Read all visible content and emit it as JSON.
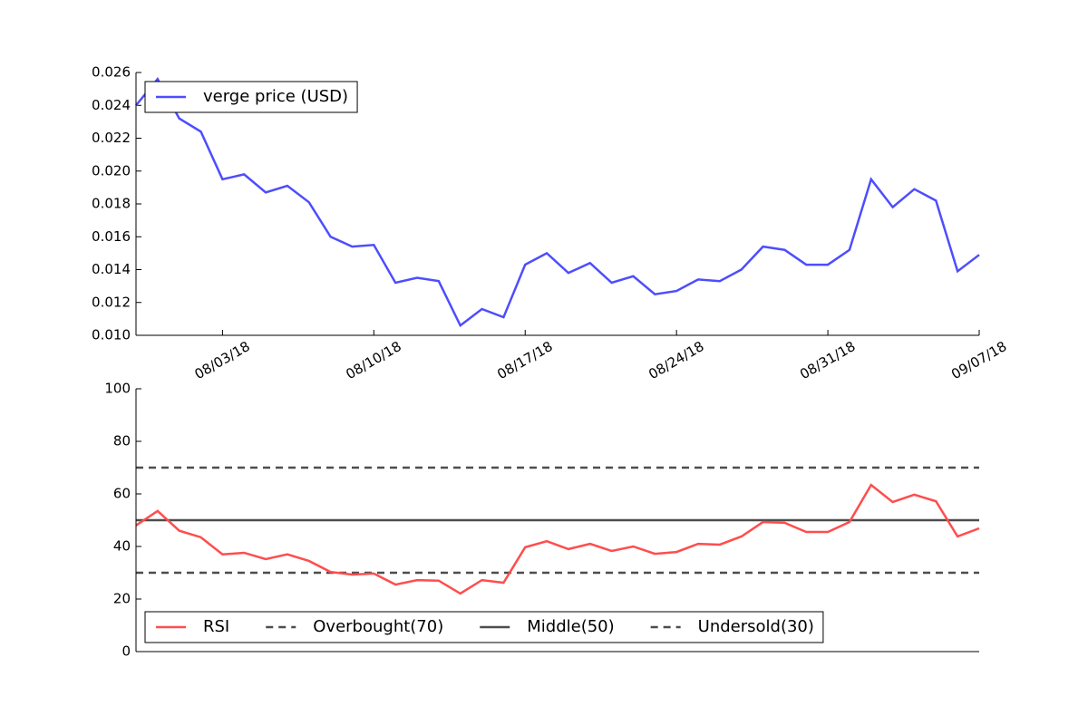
{
  "chart_data": [
    {
      "type": "line",
      "x": [
        "2018-07-30",
        "2018-07-31",
        "2018-08-01",
        "2018-08-02",
        "2018-08-03",
        "2018-08-04",
        "2018-08-05",
        "2018-08-06",
        "2018-08-07",
        "2018-08-08",
        "2018-08-09",
        "2018-08-10",
        "2018-08-11",
        "2018-08-12",
        "2018-08-13",
        "2018-08-14",
        "2018-08-15",
        "2018-08-16",
        "2018-08-17",
        "2018-08-18",
        "2018-08-19",
        "2018-08-20",
        "2018-08-21",
        "2018-08-22",
        "2018-08-23",
        "2018-08-24",
        "2018-08-25",
        "2018-08-26",
        "2018-08-27",
        "2018-08-28",
        "2018-08-29",
        "2018-08-30",
        "2018-08-31",
        "2018-09-01",
        "2018-09-02",
        "2018-09-03",
        "2018-09-04",
        "2018-09-05",
        "2018-09-06",
        "2018-09-07"
      ],
      "series": [
        {
          "name": "verge price (USD)",
          "color": "#4d4dff",
          "values": [
            0.024,
            0.0256,
            0.0232,
            0.0224,
            0.0195,
            0.0198,
            0.0187,
            0.0191,
            0.0181,
            0.016,
            0.0154,
            0.0155,
            0.0132,
            0.0135,
            0.0133,
            0.0106,
            0.0116,
            0.0111,
            0.0143,
            0.015,
            0.0138,
            0.0144,
            0.0132,
            0.0136,
            0.0125,
            0.0127,
            0.0134,
            0.0133,
            0.014,
            0.0154,
            0.0152,
            0.0143,
            0.0143,
            0.0152,
            0.0195,
            0.0178,
            0.0189,
            0.0182,
            0.0139,
            0.0149
          ]
        }
      ],
      "xlim": [
        "2018-07-30",
        "2018-09-07"
      ],
      "xticks": [
        {
          "value": "2018-08-03",
          "label": "08/03/18"
        },
        {
          "value": "2018-08-10",
          "label": "08/10/18"
        },
        {
          "value": "2018-08-17",
          "label": "08/17/18"
        },
        {
          "value": "2018-08-24",
          "label": "08/24/18"
        },
        {
          "value": "2018-08-31",
          "label": "08/31/18"
        },
        {
          "value": "2018-09-07",
          "label": "09/07/18"
        }
      ],
      "ylim": [
        0.01,
        0.026
      ],
      "yticks": [
        {
          "value": 0.01,
          "label": "0.010"
        },
        {
          "value": 0.012,
          "label": "0.012"
        },
        {
          "value": 0.014,
          "label": "0.014"
        },
        {
          "value": 0.016,
          "label": "0.016"
        },
        {
          "value": 0.018,
          "label": "0.018"
        },
        {
          "value": 0.02,
          "label": "0.020"
        },
        {
          "value": 0.022,
          "label": "0.022"
        },
        {
          "value": 0.024,
          "label": "0.024"
        },
        {
          "value": 0.026,
          "label": "0.026"
        }
      ],
      "legend": "upper left"
    },
    {
      "type": "line",
      "series": [
        {
          "name": "RSI",
          "color": "#ff4d4d",
          "values": [
            48,
            53.5,
            46,
            43.5,
            37,
            37.6,
            35.2,
            37,
            34.5,
            30.3,
            29.3,
            29.7,
            25.5,
            27.2,
            27,
            22.1,
            27.2,
            26.2,
            39.7,
            42,
            39,
            41,
            38.3,
            40,
            37.2,
            37.9,
            41,
            40.7,
            43.8,
            49.3,
            49,
            45.5,
            45.5,
            49.3,
            63.4,
            56.9,
            59.7,
            57.2,
            43.8,
            46.9
          ]
        }
      ],
      "hlines": [
        {
          "name": "Overbought(70)",
          "value": 70,
          "color": "#4d4d4d",
          "style": "dashed"
        },
        {
          "name": "Middle(50)",
          "value": 50,
          "color": "#4d4d4d",
          "style": "solid"
        },
        {
          "name": "Undersold(30)",
          "value": 30,
          "color": "#4d4d4d",
          "style": "dashed"
        }
      ],
      "ylim": [
        0,
        100
      ],
      "yticks": [
        0,
        20,
        40,
        60,
        80,
        100
      ],
      "legend": "lower left"
    }
  ]
}
